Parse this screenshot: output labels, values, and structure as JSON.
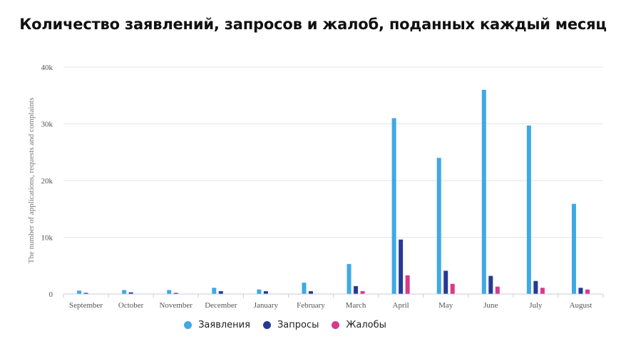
{
  "chart_data": {
    "type": "bar",
    "title": "Количество заявлений, запросов и жалоб, поданных каждый месяц",
    "ylabel": "The number of applications, requests and complaints",
    "xlabel": "",
    "categories": [
      "September",
      "October",
      "November",
      "December",
      "January",
      "February",
      "March",
      "April",
      "May",
      "June",
      "July",
      "August"
    ],
    "ylim": [
      0,
      40000
    ],
    "yticks": [
      0,
      10000,
      20000,
      30000,
      40000
    ],
    "ytick_labels": [
      "0",
      "10k",
      "20k",
      "30k",
      "40k"
    ],
    "grid": true,
    "legend_position": "bottom",
    "series": [
      {
        "name": "Заявления",
        "color": "#3fa9e5",
        "values": [
          600,
          700,
          700,
          1100,
          800,
          2000,
          5300,
          31000,
          24000,
          36000,
          29700,
          15900
        ]
      },
      {
        "name": "Запросы",
        "color": "#253a95",
        "values": [
          200,
          300,
          200,
          500,
          500,
          500,
          1400,
          9600,
          4100,
          3200,
          2300,
          1100
        ]
      },
      {
        "name": "Жалобы",
        "color": "#d63a8a",
        "values": [
          0,
          0,
          0,
          0,
          0,
          0,
          500,
          3300,
          1800,
          1300,
          1100,
          800
        ]
      }
    ]
  }
}
